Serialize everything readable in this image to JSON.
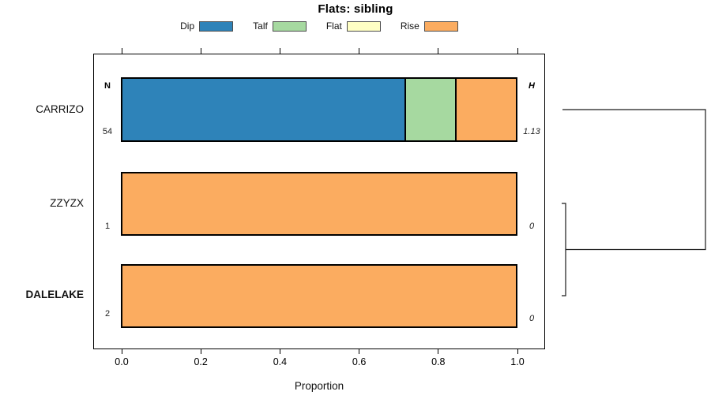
{
  "title": "Flats: sibling",
  "annotations": {
    "n_header": "N",
    "h_header": "H"
  },
  "rows": [
    {
      "label": "CARRIZO",
      "n": "54",
      "h": "1.13"
    },
    {
      "label": "ZZYZX",
      "n": "1",
      "h": "0"
    },
    {
      "label": "DALELAKE",
      "n": "2",
      "h": "0"
    }
  ],
  "axis": {
    "label": "Proportion"
  },
  "chart_data": {
    "type": "bar",
    "orientation": "horizontal",
    "stacked": true,
    "title": "Flats: sibling",
    "xlabel": "Proportion",
    "xlim": [
      0,
      1
    ],
    "xticks": [
      0,
      0.2,
      0.4,
      0.6,
      0.8,
      1.0
    ],
    "xtick_labels": [
      "0.0",
      "0.2",
      "0.4",
      "0.6",
      "0.8",
      "1.0"
    ],
    "grid": false,
    "legend_position": "top",
    "categories": [
      "CARRIZO",
      "ZZYZX",
      "DALELAKE"
    ],
    "series": [
      {
        "name": "Dip",
        "color": "#2E83B9",
        "values": [
          0.72,
          0,
          0
        ]
      },
      {
        "name": "Talf",
        "color": "#A6D9A0",
        "values": [
          0.13,
          0,
          0
        ]
      },
      {
        "name": "Flat",
        "color": "#FFFFC4",
        "values": [
          0,
          0,
          0
        ]
      },
      {
        "name": "Rise",
        "color": "#FBAC60",
        "values": [
          0.15,
          1,
          1
        ]
      }
    ],
    "row_counts": {
      "label": "N",
      "values": [
        54,
        1,
        2
      ]
    },
    "row_entropy": {
      "label": "H",
      "values": [
        1.13,
        0,
        0
      ]
    },
    "dendrogram": {
      "present": true,
      "first_merge": [
        "ZZYZX",
        "DALELAKE"
      ],
      "second_merge": [
        "CARRIZO",
        "(ZZYZX,DALELAKE)"
      ]
    },
    "colors": {
      "bar_border": "#000000",
      "box_border": "#000000",
      "background": "#FFFFFF"
    }
  }
}
